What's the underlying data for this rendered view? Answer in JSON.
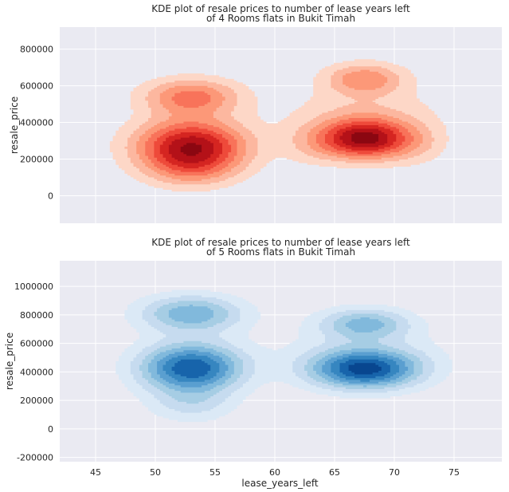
{
  "chart_data": [
    {
      "type": "kde",
      "title_lines": [
        "KDE plot of resale prices to number of lease years left",
        "of 4 Rooms flats in Bukit Timah"
      ],
      "xlabel": "",
      "ylabel": "resale_price",
      "xlim": [
        42,
        79
      ],
      "ylim": [
        -150000,
        920000
      ],
      "xticks": [
        45,
        50,
        55,
        60,
        65,
        70,
        75
      ],
      "yticks": [
        0,
        200000,
        400000,
        600000,
        800000
      ],
      "show_xtick_labels": false,
      "grid": true,
      "cmap": "Reds",
      "levels": [
        "#fdd7c7",
        "#fcb79f",
        "#fc9878",
        "#f8735a",
        "#ee4a3a",
        "#d52521",
        "#b41118",
        "#8b0711"
      ],
      "clusters": [
        {
          "components": [
            {
              "cx": 53,
              "cy": 270000,
              "sx": 3.2,
              "sy": 100000,
              "w": 1.0
            },
            {
              "cx": 53,
              "cy": 540000,
              "sx": 2.8,
              "sy": 70000,
              "w": 0.55
            },
            {
              "cx": 53,
              "cy": 140000,
              "sx": 2.6,
              "sy": 70000,
              "w": 0.25
            }
          ]
        },
        {
          "components": [
            {
              "cx": 67.5,
              "cy": 310000,
              "sx": 2.6,
              "sy": 75000,
              "w": 1.0
            },
            {
              "cx": 67.5,
              "cy": 640000,
              "sx": 2.3,
              "sy": 60000,
              "w": 0.45
            },
            {
              "cx": 67.5,
              "cy": 450000,
              "sx": 4.5,
              "sy": 110000,
              "w": 0.2
            },
            {
              "cx": 63.0,
              "cy": 280000,
              "sx": 1.8,
              "sy": 80000,
              "w": 0.15
            },
            {
              "cx": 72.0,
              "cy": 280000,
              "sx": 1.8,
              "sy": 80000,
              "w": 0.15
            }
          ]
        }
      ]
    },
    {
      "type": "kde",
      "title_lines": [
        "KDE plot of resale prices to number of lease years left",
        "of 5 Rooms flats in Bukit Timah"
      ],
      "xlabel": "lease_years_left",
      "ylabel": "resale_price",
      "xlim": [
        42,
        79
      ],
      "ylim": [
        -230000,
        1180000
      ],
      "xticks": [
        45,
        50,
        55,
        60,
        65,
        70,
        75
      ],
      "yticks": [
        -200000,
        0,
        200000,
        400000,
        600000,
        800000,
        1000000
      ],
      "show_xtick_labels": true,
      "grid": true,
      "cmap": "Blues",
      "levels": [
        "#dbe9f6",
        "#c6dbef",
        "#a6cde4",
        "#81b9dc",
        "#5a9fd0",
        "#3686c0",
        "#1764ab",
        "#08468f"
      ],
      "clusters": [
        {
          "components": [
            {
              "cx": 53,
              "cy": 430000,
              "sx": 3.0,
              "sy": 120000,
              "w": 1.0
            },
            {
              "cx": 53,
              "cy": 810000,
              "sx": 3.0,
              "sy": 90000,
              "w": 0.6
            },
            {
              "cx": 53,
              "cy": 170000,
              "sx": 2.5,
              "sy": 90000,
              "w": 0.25
            }
          ]
        },
        {
          "components": [
            {
              "cx": 67.5,
              "cy": 420000,
              "sx": 3.2,
              "sy": 95000,
              "w": 1.0
            },
            {
              "cx": 67.5,
              "cy": 740000,
              "sx": 2.6,
              "sy": 75000,
              "w": 0.5
            },
            {
              "cx": 67.5,
              "cy": 560000,
              "sx": 5.0,
              "sy": 150000,
              "w": 0.15
            }
          ]
        }
      ]
    }
  ]
}
